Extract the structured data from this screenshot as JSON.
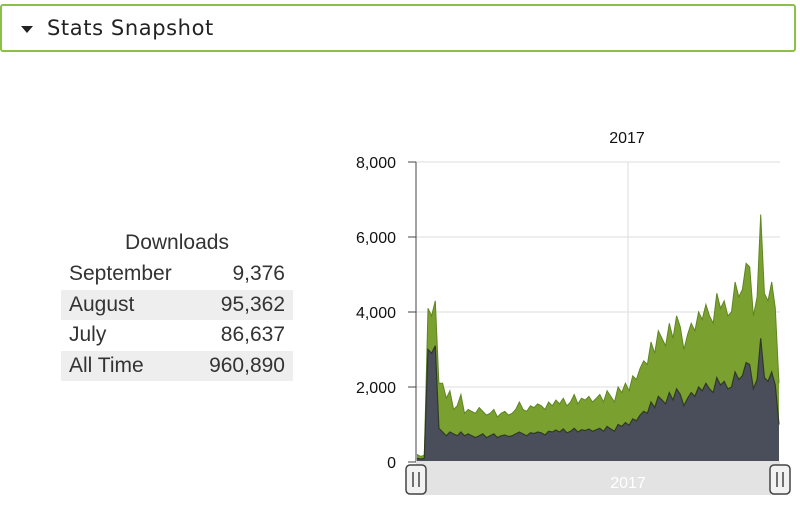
{
  "panel": {
    "title": "Stats Snapshot",
    "collapse_icon": "caret-down-icon"
  },
  "downloads": {
    "heading": "Downloads",
    "rows": [
      {
        "label": "September",
        "value": "9,376"
      },
      {
        "label": "August",
        "value": "95,362"
      },
      {
        "label": "July",
        "value": "86,637"
      },
      {
        "label": "All Time",
        "value": "960,890"
      }
    ]
  },
  "chart_data": {
    "type": "area",
    "title": "2017",
    "x_label_year": "2017",
    "navigator_label": "2017",
    "ylim": [
      0,
      8000
    ],
    "y_ticks": [
      "8,000",
      "6,000",
      "4,000",
      "2,000",
      "0"
    ],
    "y_tick_values": [
      8000,
      6000,
      4000,
      2000,
      0
    ],
    "grid": true,
    "colors": {
      "series_top": "#7aa12f",
      "series_bottom": "#4a4e5a",
      "outline": "#2f3a26"
    },
    "series": [
      {
        "values": [
          200,
          150,
          180,
          4100,
          3900,
          4300,
          2100,
          2100,
          1700,
          1900,
          1400,
          1500,
          1800,
          1300,
          1400,
          1350,
          1300,
          1450,
          1350,
          1250,
          1300,
          1400,
          1200,
          1300,
          1350,
          1250,
          1300,
          1400,
          1600,
          1400,
          1350,
          1500,
          1450,
          1550,
          1500,
          1400,
          1600,
          1500,
          1650,
          1550,
          1700,
          1500,
          1600,
          1800,
          1550,
          1700,
          1650,
          1750,
          1600,
          1700,
          1800,
          1600,
          1900,
          1750,
          1600,
          2000,
          1850,
          2100,
          1900,
          2300,
          2200,
          2500,
          2700,
          2600,
          3200,
          2900,
          3500,
          3300,
          3100,
          3700,
          3300,
          3900,
          3600,
          3000,
          3400,
          3700,
          3500,
          4000,
          3800,
          4200,
          3900,
          3700,
          4500,
          4100,
          4300,
          3900,
          4000,
          4800,
          4400,
          4600,
          5300,
          5200,
          3900,
          4400,
          6600,
          4500,
          4300,
          4800,
          4100,
          2100
        ]
      },
      {
        "values": [
          100,
          80,
          100,
          3000,
          2900,
          3100,
          900,
          800,
          700,
          800,
          750,
          700,
          800,
          700,
          750,
          700,
          650,
          700,
          750,
          650,
          700,
          750,
          650,
          700,
          720,
          680,
          700,
          750,
          800,
          750,
          700,
          780,
          760,
          800,
          780,
          720,
          820,
          800,
          850,
          800,
          880,
          780,
          820,
          900,
          800,
          860,
          840,
          880,
          820,
          860,
          900,
          820,
          950,
          880,
          820,
          1000,
          950,
          1050,
          980,
          1150,
          1100,
          1250,
          1350,
          1300,
          1600,
          1450,
          1750,
          1650,
          1550,
          1850,
          1650,
          1950,
          1800,
          1500,
          1700,
          1850,
          1750,
          2000,
          1900,
          2100,
          1950,
          1850,
          2250,
          2050,
          2150,
          1950,
          2000,
          2400,
          2200,
          2300,
          2650,
          2600,
          1950,
          2200,
          3300,
          2250,
          2150,
          2400,
          2050,
          1000
        ]
      }
    ]
  }
}
